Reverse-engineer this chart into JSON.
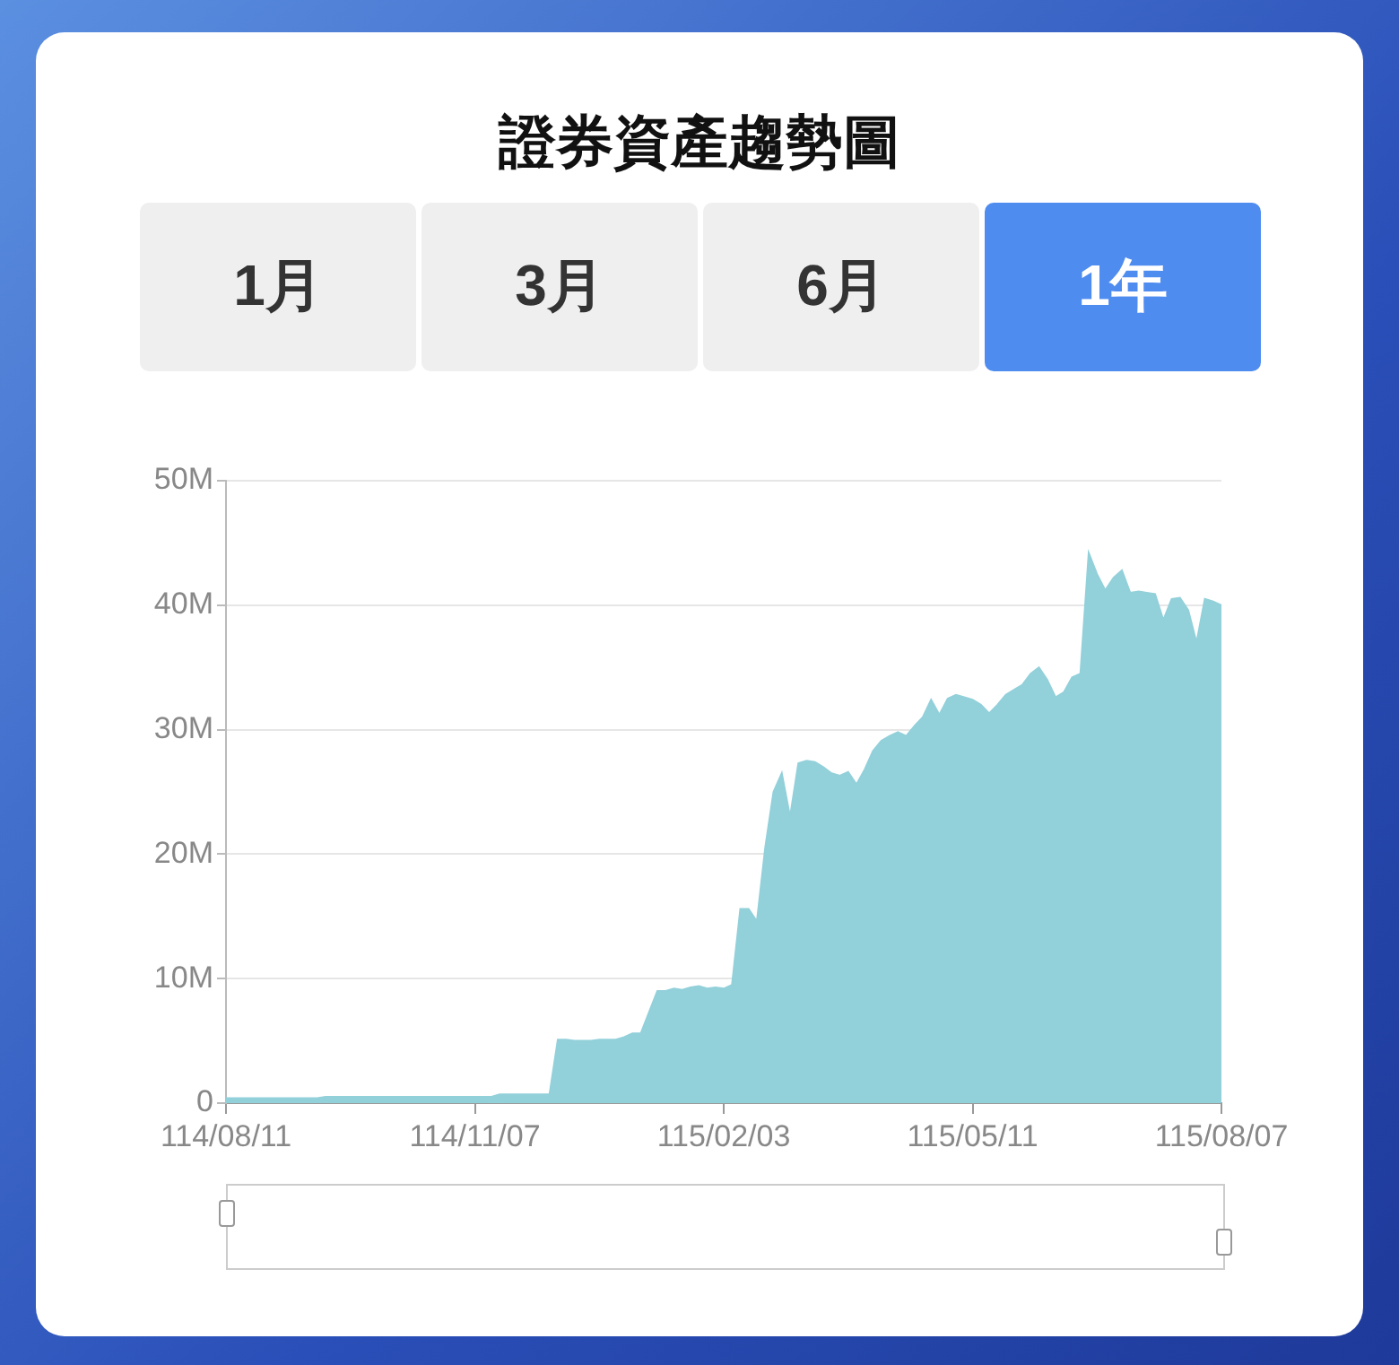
{
  "chart_data": {
    "type": "area",
    "title": "證券資產趨勢圖",
    "annotations": [
      "1月",
      "3月",
      "6月",
      "1年"
    ],
    "categories": [
      "114/08/11",
      null,
      null,
      null,
      null,
      null,
      null,
      null,
      null,
      null,
      null,
      null,
      null,
      null,
      null,
      null,
      null,
      null,
      null,
      null,
      null,
      null,
      null,
      null,
      null,
      null,
      null,
      null,
      null,
      null,
      "114/11/07",
      null,
      null,
      null,
      null,
      null,
      null,
      null,
      null,
      null,
      null,
      null,
      null,
      null,
      null,
      null,
      null,
      null,
      null,
      null,
      null,
      null,
      null,
      null,
      null,
      null,
      null,
      null,
      null,
      null,
      "115/02/03",
      null,
      null,
      null,
      null,
      null,
      null,
      null,
      null,
      null,
      null,
      null,
      null,
      null,
      null,
      null,
      null,
      null,
      null,
      null,
      null,
      null,
      null,
      null,
      null,
      null,
      null,
      null,
      null,
      null,
      "115/05/11",
      null,
      null,
      null,
      null,
      null,
      null,
      null,
      null,
      null,
      null,
      null,
      null,
      null,
      null,
      null,
      null,
      null,
      null,
      null,
      null,
      null,
      null,
      null,
      null,
      null,
      null,
      null,
      null,
      null,
      "115/08/07"
    ],
    "series": [
      {
        "color": "#92d0da",
        "values": [
          0.4,
          0.4,
          0.4,
          0.4,
          0.4,
          0.4,
          0.4,
          0.4,
          0.4,
          0.4,
          0.4,
          0.4,
          0.5,
          0.5,
          0.5,
          0.5,
          0.5,
          0.5,
          0.5,
          0.5,
          0.5,
          0.5,
          0.5,
          0.5,
          0.5,
          0.5,
          0.5,
          0.5,
          0.5,
          0.5,
          0.5,
          0.5,
          0.5,
          0.7,
          0.7,
          0.7,
          0.7,
          0.7,
          0.7,
          0.7,
          5.1,
          5.1,
          5.0,
          5.0,
          5.0,
          5.1,
          5.1,
          5.1,
          5.3,
          5.6,
          5.6,
          7.3,
          9.0,
          9.0,
          9.2,
          9.1,
          9.3,
          9.4,
          9.2,
          9.3,
          9.2,
          9.5,
          15.6,
          15.6,
          14.6,
          20.5,
          25.0,
          26.5,
          23.0,
          27.3,
          27.5,
          27.4,
          27.0,
          26.5,
          26.3,
          26.6,
          25.6,
          26.8,
          28.3,
          29.1,
          29.5,
          29.8,
          29.5,
          30.3,
          31.0,
          32.4,
          31.2,
          32.5,
          32.8,
          32.6,
          32.4,
          32.0,
          31.3,
          32.0,
          32.8,
          33.2,
          33.6,
          34.5,
          35.0,
          34.0,
          32.6,
          33.0,
          34.2,
          34.5,
          44.2,
          42.5,
          41.2,
          42.2,
          42.8,
          41.0,
          41.1,
          41.0,
          40.9,
          38.8,
          40.5,
          40.6,
          39.6,
          37.0,
          40.5,
          40.3,
          40.0
        ]
      }
    ],
    "ylim": [
      0,
      50
    ],
    "yticks": [
      0,
      {
        "value": 10,
        "label": "10M"
      },
      {
        "value": 20,
        "label": "20M"
      },
      {
        "value": 30,
        "label": "30M"
      },
      {
        "value": 40,
        "label": "40M"
      },
      {
        "value": 50,
        "label": "50M"
      }
    ],
    "grid": "y",
    "legend": false,
    "marker": "none"
  }
}
